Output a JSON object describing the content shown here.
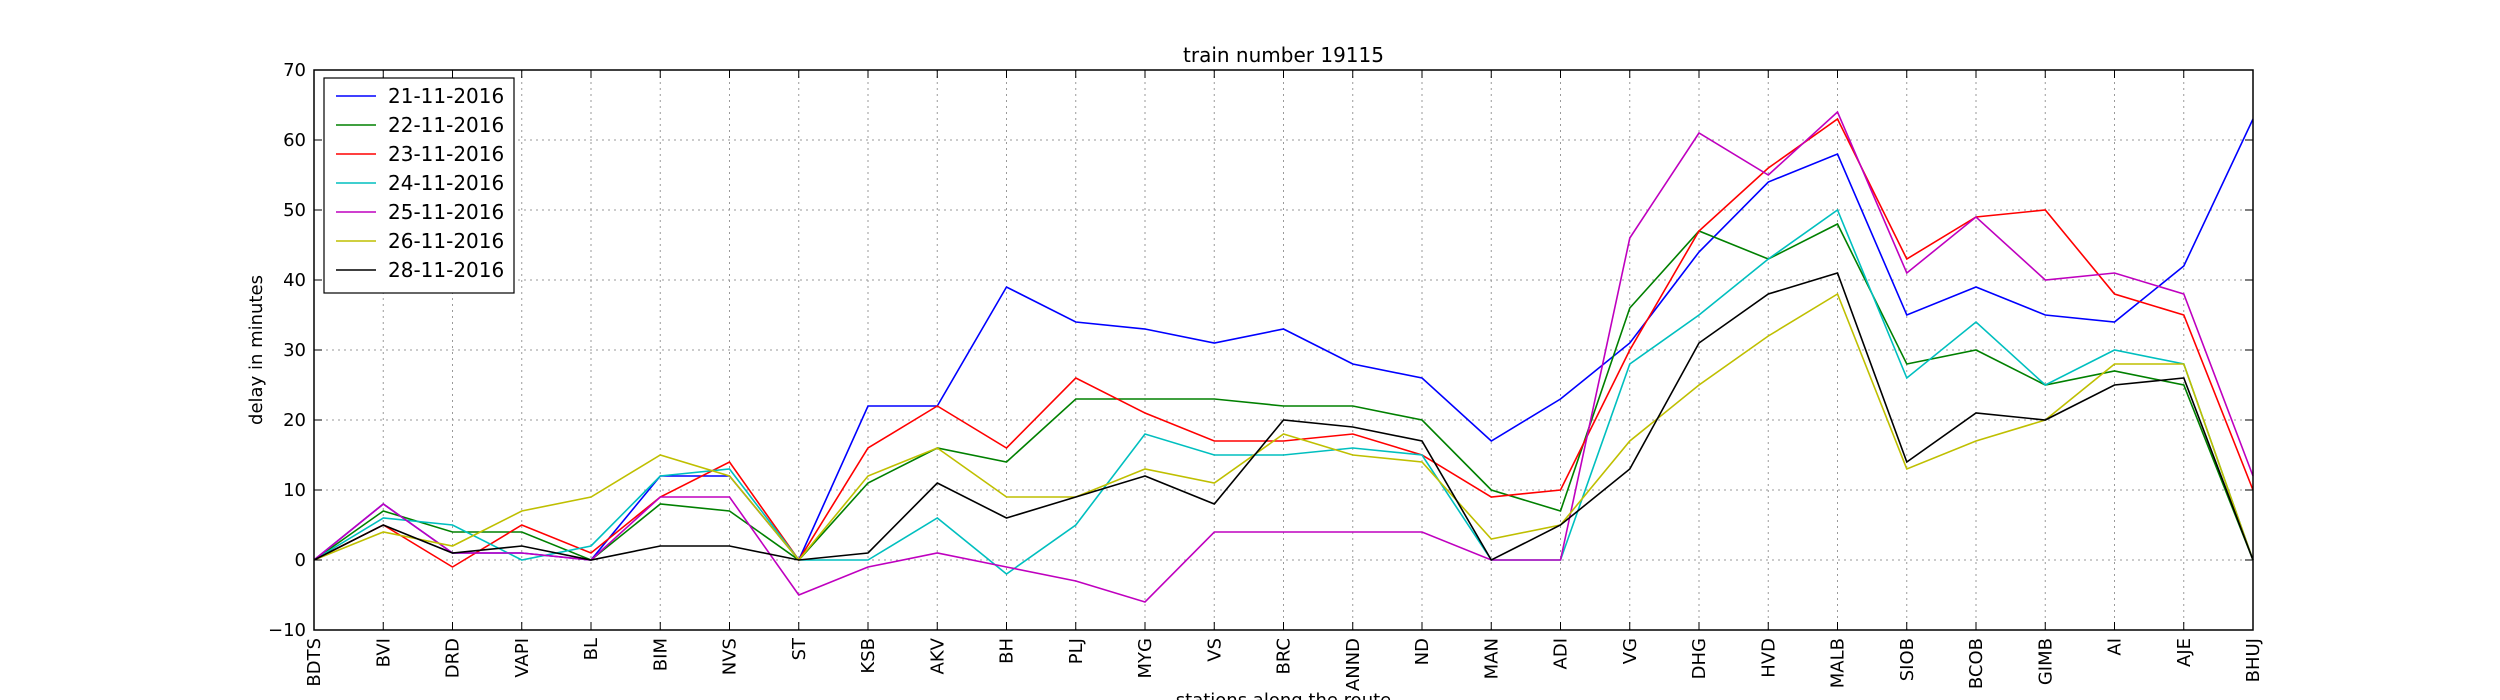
{
  "chart_data": {
    "type": "line",
    "title": "train number 19115",
    "xlabel": "stations along the route",
    "ylabel": "delay in minutes",
    "ylim": [
      -10,
      70
    ],
    "yticks": [
      -10,
      0,
      10,
      20,
      30,
      40,
      50,
      60,
      70
    ],
    "grid": true,
    "legend_position": "top-left",
    "categories": [
      "BDTS",
      "BVI",
      "DRD",
      "VAPI",
      "BL",
      "BIM",
      "NVS",
      "ST",
      "KSB",
      "AKV",
      "BH",
      "PLJ",
      "MYG",
      "VS",
      "BRC",
      "ANND",
      "ND",
      "MAN",
      "ADI",
      "VG",
      "DHG",
      "HVD",
      "MALB",
      "SIOB",
      "BCOB",
      "GIMB",
      "AI",
      "AJE",
      "BHUJ"
    ],
    "series": [
      {
        "name": "21-11-2016",
        "color": "#0000ff",
        "values": [
          0,
          8,
          1,
          1,
          0,
          12,
          12,
          0,
          22,
          22,
          39,
          34,
          33,
          31,
          33,
          28,
          26,
          17,
          23,
          31,
          44,
          54,
          58,
          35,
          39,
          35,
          34,
          42,
          63
        ]
      },
      {
        "name": "22-11-2016",
        "color": "#008000",
        "values": [
          0,
          7,
          4,
          4,
          0,
          8,
          7,
          0,
          11,
          16,
          14,
          23,
          23,
          23,
          22,
          22,
          20,
          10,
          7,
          36,
          47,
          43,
          48,
          28,
          30,
          25,
          27,
          25,
          0
        ]
      },
      {
        "name": "23-11-2016",
        "color": "#ff0000",
        "values": [
          0,
          5,
          -1,
          5,
          1,
          9,
          14,
          0,
          16,
          22,
          16,
          26,
          21,
          17,
          17,
          18,
          15,
          9,
          10,
          30,
          47,
          56,
          63,
          43,
          49,
          50,
          38,
          35,
          10
        ]
      },
      {
        "name": "24-11-2016",
        "color": "#00bfbf",
        "values": [
          0,
          6,
          5,
          0,
          2,
          12,
          13,
          0,
          0,
          6,
          -2,
          5,
          18,
          15,
          15,
          16,
          15,
          0,
          0,
          28,
          35,
          43,
          50,
          26,
          34,
          25,
          30,
          28,
          0
        ]
      },
      {
        "name": "25-11-2016",
        "color": "#bf00bf",
        "values": [
          0,
          8,
          1,
          1,
          0,
          9,
          9,
          -5,
          -1,
          1,
          -1,
          -3,
          -6,
          4,
          4,
          4,
          4,
          0,
          0,
          46,
          61,
          55,
          64,
          41,
          49,
          40,
          41,
          38,
          12
        ]
      },
      {
        "name": "26-11-2016",
        "color": "#bfbf00",
        "values": [
          0,
          4,
          2,
          7,
          9,
          15,
          12,
          0,
          12,
          16,
          9,
          9,
          13,
          11,
          18,
          15,
          14,
          3,
          5,
          17,
          25,
          32,
          38,
          13,
          17,
          20,
          28,
          28,
          0
        ]
      },
      {
        "name": "28-11-2016",
        "color": "#000000",
        "values": [
          0,
          5,
          1,
          2,
          0,
          2,
          2,
          0,
          1,
          11,
          6,
          9,
          12,
          8,
          20,
          19,
          17,
          0,
          5,
          13,
          31,
          38,
          41,
          14,
          21,
          20,
          25,
          26,
          0
        ]
      }
    ]
  }
}
